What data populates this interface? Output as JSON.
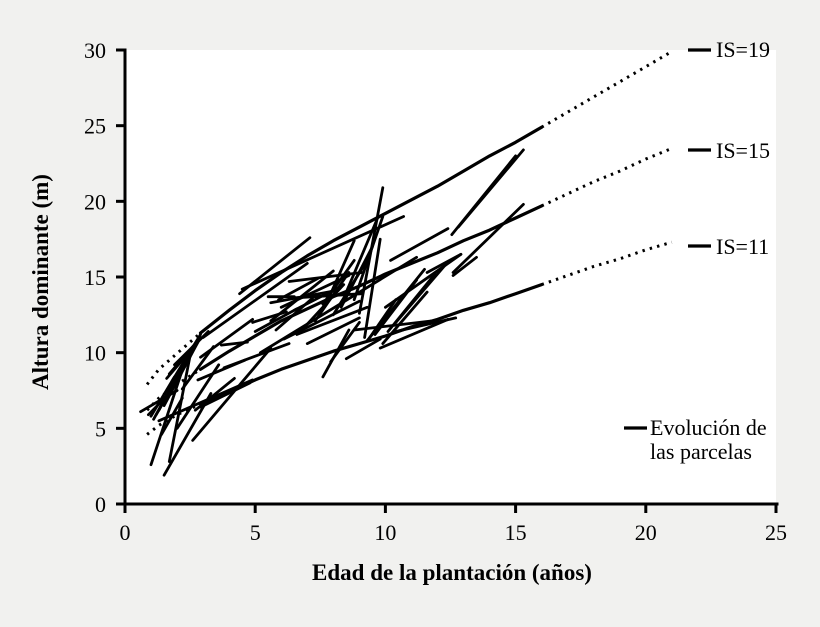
{
  "page": {
    "background_color": "#f1f1ef",
    "plot_background_color": "#ffffff",
    "line_color": "#000000"
  },
  "chart_data": {
    "type": "line",
    "title": "",
    "xlabel": "Edad de la plantación (años)",
    "ylabel": "Altura dominante (m)",
    "xlim": [
      0,
      25
    ],
    "ylim": [
      0,
      30
    ],
    "xticks": [
      0,
      5,
      10,
      15,
      20,
      25
    ],
    "yticks": [
      0,
      5,
      10,
      15,
      20,
      25,
      30
    ],
    "grid": false,
    "legend_position": "right",
    "site_index_curves": [
      {
        "label": "IS=19",
        "site_index": 19,
        "dotted_start": [
          [
            0.85,
            7.9
          ],
          [
            1.3,
            8.9
          ],
          [
            2,
            9.95
          ],
          [
            2.9,
            11.3
          ]
        ],
        "solid": [
          [
            2.9,
            11.3
          ],
          [
            4,
            12.8
          ],
          [
            5,
            14.1
          ],
          [
            6,
            15.3
          ],
          [
            7,
            16.4
          ],
          [
            8,
            17.4
          ],
          [
            9,
            18.3
          ],
          [
            10,
            19.2
          ],
          [
            11,
            20.1
          ],
          [
            12,
            21.0
          ],
          [
            13,
            22.0
          ],
          [
            14,
            23.0
          ],
          [
            15,
            23.9
          ],
          [
            16,
            24.9
          ]
        ],
        "dotted_end": [
          [
            16,
            24.9
          ],
          [
            17,
            25.9
          ],
          [
            18,
            26.9
          ],
          [
            19,
            27.9
          ],
          [
            20,
            28.9
          ],
          [
            21,
            29.9
          ]
        ]
      },
      {
        "label": "IS=15",
        "site_index": 15,
        "dotted_start": [
          [
            0.85,
            6.2
          ],
          [
            1.3,
            7.0
          ],
          [
            2,
            7.9
          ],
          [
            2.9,
            8.9
          ]
        ],
        "solid": [
          [
            2.9,
            8.9
          ],
          [
            4,
            10.1
          ],
          [
            5,
            11.1
          ],
          [
            6,
            12.1
          ],
          [
            7,
            12.9
          ],
          [
            8,
            13.7
          ],
          [
            9,
            14.4
          ],
          [
            10,
            15.2
          ],
          [
            11,
            15.9
          ],
          [
            12,
            16.6
          ],
          [
            13,
            17.4
          ],
          [
            14,
            18.1
          ],
          [
            15,
            18.9
          ],
          [
            16,
            19.7
          ]
        ],
        "dotted_end": [
          [
            16,
            19.7
          ],
          [
            17,
            20.5
          ],
          [
            18,
            21.3
          ],
          [
            19,
            22.0
          ],
          [
            20,
            22.8
          ],
          [
            21,
            23.5
          ]
        ]
      },
      {
        "label": "IS=11",
        "site_index": 11,
        "dotted_start": [
          [
            0.85,
            4.6
          ],
          [
            1.3,
            5.2
          ],
          [
            2,
            5.9
          ],
          [
            2.9,
            6.6
          ]
        ],
        "solid": [
          [
            2.9,
            6.6
          ],
          [
            4,
            7.4
          ],
          [
            5,
            8.2
          ],
          [
            6,
            8.9
          ],
          [
            7,
            9.5
          ],
          [
            8,
            10.1
          ],
          [
            9,
            10.6
          ],
          [
            10,
            11.1
          ],
          [
            11,
            11.7
          ],
          [
            12,
            12.2
          ],
          [
            13,
            12.8
          ],
          [
            14,
            13.3
          ],
          [
            15,
            13.9
          ],
          [
            16,
            14.5
          ]
        ],
        "dotted_end": [
          [
            16,
            14.5
          ],
          [
            17,
            15.1
          ],
          [
            18,
            15.7
          ],
          [
            19,
            16.2
          ],
          [
            20,
            16.8
          ],
          [
            21,
            17.3
          ]
        ]
      }
    ],
    "parcel_trajectories": [
      [
        1.0,
        2.6,
        2.4,
        9.9
      ],
      [
        1.5,
        1.9,
        3.3,
        7.3
      ],
      [
        1.7,
        2.8,
        2.5,
        9.8
      ],
      [
        1.1,
        5.6,
        2.3,
        9.4
      ],
      [
        1.2,
        5.9,
        2.6,
        10.1
      ],
      [
        1.5,
        6.5,
        2.8,
        10.7
      ],
      [
        1.6,
        7.1,
        2.9,
        11.0
      ],
      [
        1.8,
        8.1,
        2.9,
        11.2
      ],
      [
        1.6,
        8.3,
        2.6,
        10.3
      ],
      [
        1.7,
        8.6,
        2.7,
        10.6
      ],
      [
        1.3,
        6.2,
        2.1,
        8.8
      ],
      [
        1.0,
        5.8,
        1.9,
        8.4
      ],
      [
        0.9,
        5.9,
        1.7,
        7.3
      ],
      [
        1.3,
        5.5,
        4.9,
        8.2
      ],
      [
        0.6,
        6.1,
        2.0,
        7.5
      ],
      [
        1.4,
        4.6,
        2.2,
        7.0
      ],
      [
        2.0,
        5.0,
        3.6,
        9.2
      ],
      [
        2.6,
        4.2,
        5.6,
        10.3
      ],
      [
        2.9,
        6.4,
        4.8,
        8.0
      ],
      [
        2.7,
        6.2,
        4.2,
        8.3
      ],
      [
        2.8,
        8.2,
        4.6,
        9.5
      ],
      [
        3.8,
        9.0,
        6.3,
        10.6
      ],
      [
        2.9,
        9.7,
        4.9,
        12.2
      ],
      [
        1.9,
        9.2,
        3.2,
        11.4
      ],
      [
        2.2,
        7.6,
        3.4,
        10.4
      ],
      [
        3.7,
        10.5,
        4.7,
        10.7
      ],
      [
        3.0,
        11.0,
        7.0,
        15.9
      ],
      [
        4.4,
        13.9,
        7.1,
        17.6
      ],
      [
        4.9,
        12.0,
        6.2,
        12.7
      ],
      [
        5.0,
        11.4,
        6.6,
        12.9
      ],
      [
        4.5,
        14.2,
        10.7,
        19.0
      ],
      [
        5.2,
        10.0,
        11.2,
        16.3
      ],
      [
        5.6,
        12.1,
        8.0,
        15.4
      ],
      [
        6.0,
        13.0,
        8.6,
        15.1
      ],
      [
        5.9,
        13.5,
        7.4,
        14.9
      ],
      [
        6.3,
        13.6,
        9.1,
        13.9
      ],
      [
        6.3,
        14.7,
        9.1,
        15.3
      ],
      [
        5.6,
        13.3,
        8.1,
        14.1
      ],
      [
        6.5,
        12.8,
        8.2,
        14.3
      ],
      [
        5.8,
        11.5,
        7.2,
        13.6
      ],
      [
        6.9,
        11.7,
        8.4,
        14.5
      ],
      [
        7.3,
        12.1,
        8.6,
        15.3
      ],
      [
        7.6,
        13.2,
        8.8,
        16.1
      ],
      [
        7.9,
        13.9,
        8.8,
        17.4
      ],
      [
        8.0,
        12.5,
        9.3,
        16.1
      ],
      [
        8.3,
        13.0,
        9.5,
        17.0
      ],
      [
        8.5,
        14.0,
        9.7,
        18.9
      ],
      [
        8.8,
        13.5,
        9.9,
        19.0
      ],
      [
        6.1,
        10.9,
        9.0,
        13.4
      ],
      [
        6.6,
        11.2,
        9.3,
        13.0
      ],
      [
        7.0,
        10.6,
        9.0,
        12.3
      ],
      [
        5.5,
        13.7,
        6.5,
        13.7
      ],
      [
        9.0,
        12.6,
        9.9,
        20.9
      ],
      [
        9.2,
        11.0,
        9.8,
        17.5
      ],
      [
        7.6,
        8.4,
        8.6,
        11.5
      ],
      [
        8.5,
        9.6,
        9.8,
        10.9
      ],
      [
        7.9,
        9.4,
        9.0,
        12.0
      ],
      [
        9.3,
        10.8,
        11.5,
        15.5
      ],
      [
        9.6,
        11.2,
        11.2,
        14.8
      ],
      [
        9.9,
        10.6,
        11.6,
        14.0
      ],
      [
        10.1,
        11.4,
        11.9,
        15.2
      ],
      [
        10.4,
        12.0,
        12.3,
        15.8
      ],
      [
        9.4,
        11.0,
        10.4,
        13.5
      ],
      [
        10.0,
        13.0,
        12.9,
        16.5
      ],
      [
        11.6,
        15.3,
        12.9,
        16.5
      ],
      [
        12.6,
        15.1,
        13.5,
        16.3
      ],
      [
        8.8,
        11.5,
        11.8,
        12.1
      ],
      [
        9.8,
        10.3,
        12.4,
        12.2
      ],
      [
        10.4,
        11.4,
        12.7,
        12.3
      ],
      [
        10.2,
        16.1,
        12.4,
        18.2
      ],
      [
        12.8,
        18.3,
        15.3,
        23.4
      ],
      [
        12.55,
        17.8,
        15.0,
        23.0
      ],
      [
        12.6,
        15.3,
        15.3,
        19.8
      ]
    ],
    "legend": {
      "series_label_lines": [
        "Evolución de",
        "las parcelas"
      ]
    }
  }
}
